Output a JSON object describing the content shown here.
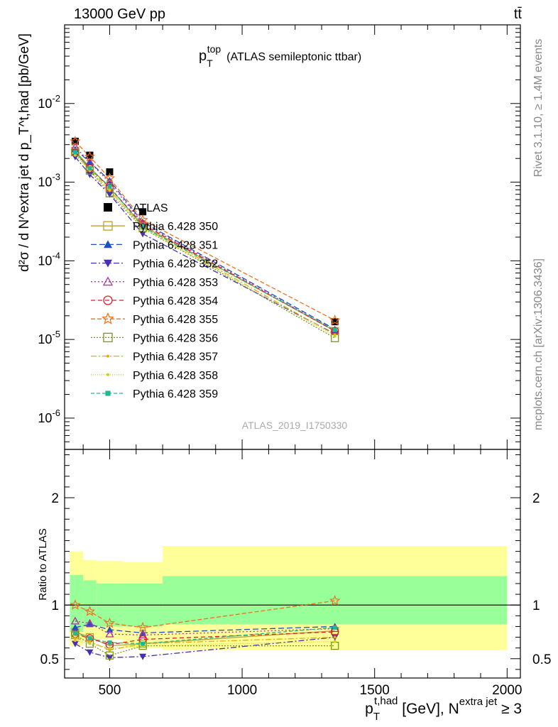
{
  "header": {
    "left": "13000 GeV pp",
    "right": "tt̄"
  },
  "side_labels": {
    "rivet": "Rivet 3.1.10, ≥ 1.4M events",
    "mcplots": "mcplots.cern.ch [arXiv:1306.3436]"
  },
  "analysis_id": "ATLAS_2019_I1750330",
  "chart_data": [
    {
      "type": "line",
      "panel": "main",
      "title": "p_T^top (ATLAS semileptonic ttbar)",
      "title_parts": {
        "base": "p",
        "sub": "T",
        "sup": "top",
        "rest": "(ATLAS semileptonic ttbar)"
      },
      "ylabel": "d²σ / d N^extra jet d p_T^t,had [pb/GeV]",
      "xlim": [
        330,
        2050
      ],
      "ylim": [
        4e-07,
        0.1
      ],
      "yscale": "log",
      "ytick_labels": [
        "10^-6",
        "10^-5",
        "10^-4",
        "10^-3",
        "10^-2"
      ],
      "ytick_values": [
        1e-06,
        1e-05,
        0.0001,
        0.001,
        0.01
      ],
      "legend_position": "center-left",
      "x": [
        370,
        425,
        500,
        625,
        1350
      ],
      "series": [
        {
          "name": "ATLAS",
          "color": "#000000",
          "marker": "square-filled",
          "dash": "none",
          "values": [
            0.0033,
            0.0022,
            0.00135,
            0.00042,
            1.68e-05
          ]
        },
        {
          "name": "Pythia 6.428 350",
          "color": "#b8a040",
          "marker": "square-open",
          "dash": "solid",
          "values": [
            0.0025,
            0.00155,
            0.00085,
            0.00028,
            1.28e-05
          ]
        },
        {
          "name": "Pythia 6.428 351",
          "color": "#1f4fbf",
          "marker": "triangle-up-filled",
          "dash": "8,4",
          "values": [
            0.0026,
            0.0018,
            0.00105,
            0.00031,
            1.35e-05
          ]
        },
        {
          "name": "Pythia 6.428 352",
          "color": "#4b2fb0",
          "marker": "triangle-down-filled",
          "dash": "8,3,2,3",
          "values": [
            0.0021,
            0.00125,
            0.0007,
            0.00022,
            1.18e-05
          ]
        },
        {
          "name": "Pythia 6.428 353",
          "color": "#b0309a",
          "marker": "triangle-up-open",
          "dash": "2,3",
          "values": [
            0.0028,
            0.0018,
            0.00098,
            0.0003,
            1.3e-05
          ]
        },
        {
          "name": "Pythia 6.428 354",
          "color": "#d8202a",
          "marker": "circle-open",
          "dash": "6,4",
          "values": [
            0.0024,
            0.0015,
            0.00085,
            0.00029,
            1.28e-05
          ]
        },
        {
          "name": "Pythia 6.428 355",
          "color": "#f07020",
          "marker": "star-open",
          "dash": "6,3",
          "values": [
            0.0033,
            0.0021,
            0.00112,
            0.00033,
            1.75e-05
          ]
        },
        {
          "name": "Pythia 6.428 356",
          "color": "#7a9a10",
          "marker": "square-open",
          "dash": "2,2",
          "values": [
            0.0024,
            0.0014,
            0.00072,
            0.00026,
            1.04e-05
          ]
        },
        {
          "name": "Pythia 6.428 357",
          "color": "#e0b010",
          "marker": "dot",
          "dash": "8,3,2,3",
          "values": [
            0.0023,
            0.00145,
            0.00078,
            0.00027,
            1.15e-05
          ]
        },
        {
          "name": "Pythia 6.428 358",
          "color": "#c8d020",
          "marker": "dot",
          "dash": "1,2",
          "values": [
            0.0022,
            0.0014,
            0.0008,
            0.00026,
            1.1e-05
          ]
        },
        {
          "name": "Pythia 6.428 359",
          "color": "#20b890",
          "marker": "square-filled-small",
          "dash": "5,3",
          "values": [
            0.0024,
            0.0015,
            0.00088,
            0.00027,
            1.32e-05
          ]
        }
      ]
    },
    {
      "type": "line",
      "panel": "ratio",
      "ylabel": "Ratio to ATLAS",
      "xlabel": "p_T^t,had [GeV], N^extra jet ≥ 3",
      "xlabel_parts": {
        "base": "p",
        "sub": "T",
        "sup": "t,had",
        "mid": " [GeV], N",
        "sup2": "extra jet",
        "rest": " ≥ 3"
      },
      "xlim": [
        330,
        2050
      ],
      "ylim": [
        0.32,
        2.45
      ],
      "xtick_labels": [
        "500",
        "1000",
        "1500",
        "2000"
      ],
      "xtick_values": [
        500,
        1000,
        1500,
        2000
      ],
      "ytick_labels": [
        "0.5",
        "1",
        "2"
      ],
      "ytick_values": [
        0.5,
        1,
        2
      ],
      "reference_line": 1,
      "bands": {
        "edges": [
          350,
          400,
          450,
          550,
          700,
          2000
        ],
        "inner": {
          "color": "#99ff99",
          "low": [
            0.75,
            0.8,
            0.8,
            0.8,
            0.82
          ],
          "high": [
            1.28,
            1.23,
            1.2,
            1.2,
            1.27
          ]
        },
        "outer": {
          "color": "#ffff99",
          "low": [
            0.62,
            0.68,
            0.68,
            0.6,
            0.58
          ],
          "high": [
            1.5,
            1.42,
            1.41,
            1.4,
            1.55
          ]
        }
      },
      "x": [
        370,
        425,
        500,
        625,
        1350
      ],
      "series": [
        {
          "name": "Pythia 6.428 350",
          "values": [
            0.75,
            0.7,
            0.62,
            0.64,
            0.76
          ]
        },
        {
          "name": "Pythia 6.428 351",
          "values": [
            0.79,
            0.82,
            0.77,
            0.74,
            0.8
          ]
        },
        {
          "name": "Pythia 6.428 352",
          "values": [
            0.64,
            0.56,
            0.51,
            0.52,
            0.7
          ]
        },
        {
          "name": "Pythia 6.428 353",
          "values": [
            0.85,
            0.83,
            0.73,
            0.72,
            0.78
          ]
        },
        {
          "name": "Pythia 6.428 354",
          "values": [
            0.73,
            0.69,
            0.63,
            0.68,
            0.75
          ]
        },
        {
          "name": "Pythia 6.428 355",
          "values": [
            1.0,
            0.94,
            0.83,
            0.79,
            1.04
          ]
        },
        {
          "name": "Pythia 6.428 356",
          "values": [
            0.72,
            0.64,
            0.53,
            0.62,
            0.62
          ]
        },
        {
          "name": "Pythia 6.428 357",
          "values": [
            0.69,
            0.66,
            0.58,
            0.64,
            0.7
          ]
        },
        {
          "name": "Pythia 6.428 358",
          "values": [
            0.67,
            0.64,
            0.6,
            0.62,
            0.66
          ]
        },
        {
          "name": "Pythia 6.428 359",
          "values": [
            0.74,
            0.69,
            0.65,
            0.64,
            0.79
          ]
        }
      ]
    }
  ]
}
